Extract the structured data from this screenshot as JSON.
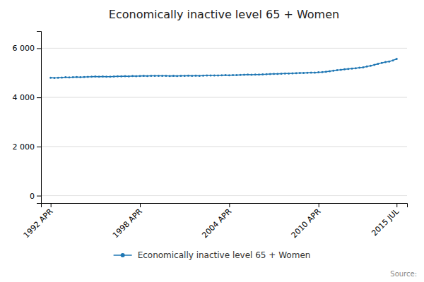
{
  "chart_data": {
    "type": "line",
    "title": "Economically inactive level 65 + Women",
    "annotations": [
      "Source:"
    ],
    "x": [
      1992.25,
      1992.5,
      1992.75,
      1993.0,
      1993.25,
      1993.5,
      1993.75,
      1994.0,
      1994.25,
      1994.5,
      1994.75,
      1995.0,
      1995.25,
      1995.5,
      1995.75,
      1996.0,
      1996.25,
      1996.5,
      1996.75,
      1997.0,
      1997.25,
      1997.5,
      1997.75,
      1998.0,
      1998.25,
      1998.5,
      1998.75,
      1999.0,
      1999.25,
      1999.5,
      1999.75,
      2000.0,
      2000.25,
      2000.5,
      2000.75,
      2001.0,
      2001.25,
      2001.5,
      2001.75,
      2002.0,
      2002.25,
      2002.5,
      2002.75,
      2003.0,
      2003.25,
      2003.5,
      2003.75,
      2004.0,
      2004.25,
      2004.5,
      2004.75,
      2005.0,
      2005.25,
      2005.5,
      2005.75,
      2006.0,
      2006.25,
      2006.5,
      2006.75,
      2007.0,
      2007.25,
      2007.5,
      2007.75,
      2008.0,
      2008.25,
      2008.5,
      2008.75,
      2009.0,
      2009.25,
      2009.5,
      2009.75,
      2010.0,
      2010.25,
      2010.5,
      2010.75,
      2011.0,
      2011.25,
      2011.5,
      2011.75,
      2012.0,
      2012.25,
      2012.5,
      2012.75,
      2013.0,
      2013.25,
      2013.5,
      2013.75,
      2014.0,
      2014.25,
      2014.5,
      2014.75,
      2015.0,
      2015.25,
      2015.5
    ],
    "series": [
      {
        "name": "Economically inactive level 65 + Women",
        "color": "#1f77b4",
        "marker": "circle",
        "values": [
          4800,
          4795,
          4800,
          4810,
          4820,
          4815,
          4820,
          4825,
          4820,
          4830,
          4835,
          4840,
          4850,
          4840,
          4850,
          4845,
          4840,
          4850,
          4855,
          4860,
          4865,
          4860,
          4870,
          4865,
          4870,
          4875,
          4870,
          4880,
          4880,
          4875,
          4880,
          4875,
          4870,
          4875,
          4870,
          4875,
          4880,
          4885,
          4880,
          4885,
          4880,
          4885,
          4890,
          4895,
          4890,
          4895,
          4900,
          4905,
          4900,
          4905,
          4910,
          4915,
          4920,
          4925,
          4920,
          4925,
          4930,
          4935,
          4940,
          4950,
          4955,
          4960,
          4965,
          4970,
          4975,
          4980,
          4985,
          4990,
          4995,
          5000,
          5005,
          5010,
          5020,
          5030,
          5045,
          5065,
          5085,
          5105,
          5125,
          5145,
          5160,
          5170,
          5185,
          5205,
          5225,
          5255,
          5285,
          5325,
          5365,
          5405,
          5435,
          5460,
          5505,
          5565
        ]
      }
    ],
    "xlim": [
      1991.6,
      2016.2
    ],
    "xticks": [
      {
        "value": 1992.25,
        "label": "1992 APR"
      },
      {
        "value": 1998.25,
        "label": "1998 APR"
      },
      {
        "value": 2004.25,
        "label": "2004 APR"
      },
      {
        "value": 2010.25,
        "label": "2010 APR"
      },
      {
        "value": 2015.5,
        "label": "2015 JUL"
      }
    ],
    "ylim": [
      -300,
      6700
    ],
    "yticks": [
      0,
      {
        "value": 2000,
        "label": "2 000"
      },
      {
        "value": 4000,
        "label": "4 000"
      },
      {
        "value": 6000,
        "label": "6 000"
      }
    ],
    "grid": "y",
    "legend": "bottom"
  }
}
